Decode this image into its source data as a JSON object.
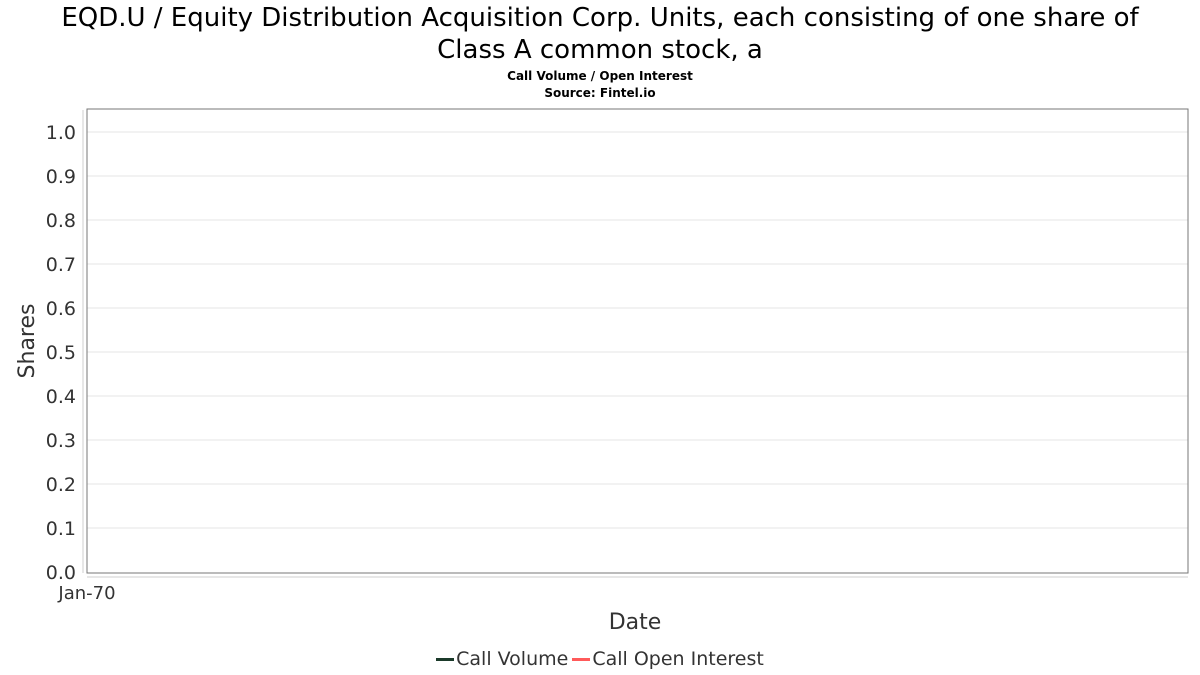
{
  "chart_data": {
    "type": "line",
    "title_lines": [
      "EQD.U / Equity Distribution Acquisition Corp. Units, each consisting of one share of",
      "Class A common stock, a"
    ],
    "subtitle_lines": [
      "Call Volume / Open Interest",
      "Source: Fintel.io"
    ],
    "xlabel": "Date",
    "ylabel": "Shares",
    "x_ticks": [
      "Jan-70"
    ],
    "y_ticks": [
      "0.0",
      "0.1",
      "0.2",
      "0.3",
      "0.4",
      "0.5",
      "0.6",
      "0.7",
      "0.8",
      "0.9",
      "1.0"
    ],
    "ylim": [
      0,
      1.05
    ],
    "grid": true,
    "legend_position": "bottom",
    "series": [
      {
        "name": "Call Volume",
        "color": "#1b3a2a",
        "values": []
      },
      {
        "name": "Call Open Interest",
        "color": "#ff5a5a",
        "values": []
      }
    ]
  }
}
